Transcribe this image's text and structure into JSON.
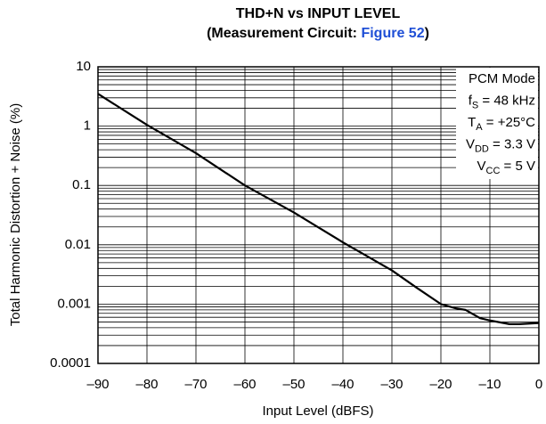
{
  "chart_data": {
    "type": "line",
    "title": "THD+N vs INPUT LEVEL",
    "subtitle": [
      "(Measurement Circuit: ",
      "Figure 52",
      ")"
    ],
    "x_label": "Input Level (dBFS)",
    "y_label": "Total Harmonic Distortion + Noise (%)",
    "annotations": [
      {
        "main": "PCM Mode"
      },
      {
        "main": "f",
        "sub": "S",
        "tail": " = 48 kHz"
      },
      {
        "main": "T",
        "sub": "A",
        "tail": " = +25°C"
      },
      {
        "main": "V",
        "sub": "DD",
        "tail": " = 3.3 V"
      },
      {
        "main": "V",
        "sub": "CC",
        "tail": " = 5 V"
      }
    ],
    "x": [
      -90,
      -80,
      -70,
      -60,
      -50,
      -40,
      -30,
      -25,
      -20,
      -17,
      -15,
      -12,
      -10,
      -6,
      -4,
      0
    ],
    "series": [
      {
        "name": "THD+N",
        "color": "#000000",
        "values": [
          3.5,
          1.05,
          0.35,
          0.1,
          0.035,
          0.011,
          0.0037,
          0.0019,
          0.001,
          0.00085,
          0.0008,
          0.00058,
          0.00053,
          0.00046,
          0.00046,
          0.00048
        ]
      }
    ],
    "xlim": [
      -90,
      0
    ],
    "xticks": [
      {
        "value": -90,
        "label": "–90"
      },
      {
        "value": -80,
        "label": "–80"
      },
      {
        "value": -70,
        "label": "–70"
      },
      {
        "value": -60,
        "label": "–60"
      },
      {
        "value": -50,
        "label": "–50"
      },
      {
        "value": -40,
        "label": "–40"
      },
      {
        "value": -30,
        "label": "–30"
      },
      {
        "value": -20,
        "label": "–20"
      },
      {
        "value": -10,
        "label": "–10"
      },
      0
    ],
    "ylim": [
      0.0001,
      10
    ],
    "yticks": [
      0.0001,
      0.001,
      0.01,
      0.1,
      1,
      10
    ],
    "ylog": true,
    "grid": true
  }
}
